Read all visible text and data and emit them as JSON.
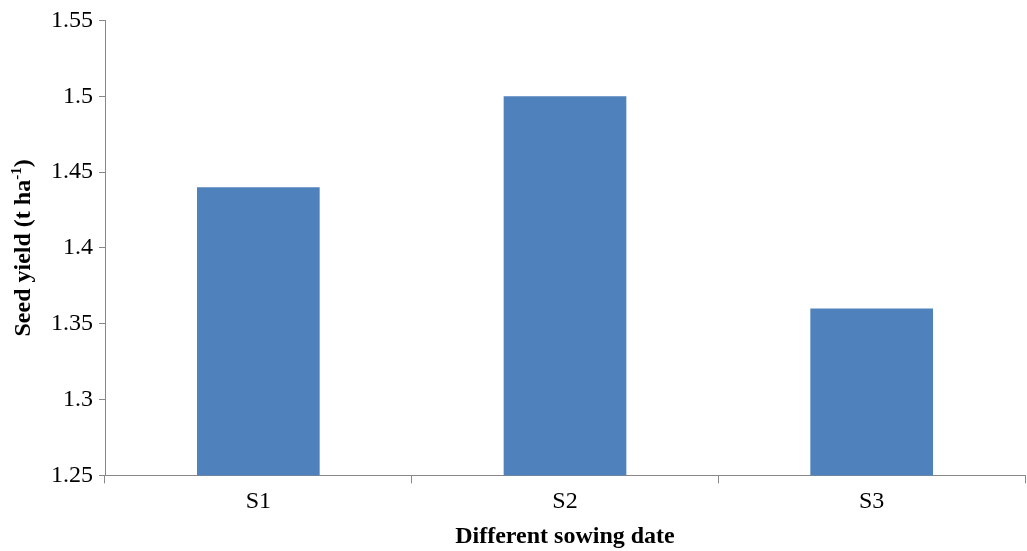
{
  "chart_data": {
    "type": "bar",
    "xlabel": "Different sowing date",
    "ylabel": "Seed yield (t ha$^{-1}$)",
    "categories": [
      "S1",
      "S2",
      "S3"
    ],
    "values": [
      1.44,
      1.5,
      1.36
    ],
    "color": "#4f81bd",
    "ylim": [
      1.25,
      1.55
    ],
    "yticks": [
      1.25,
      1.3,
      1.35,
      1.4,
      1.45,
      1.5,
      1.55
    ],
    "grid": false,
    "legend": false
  }
}
